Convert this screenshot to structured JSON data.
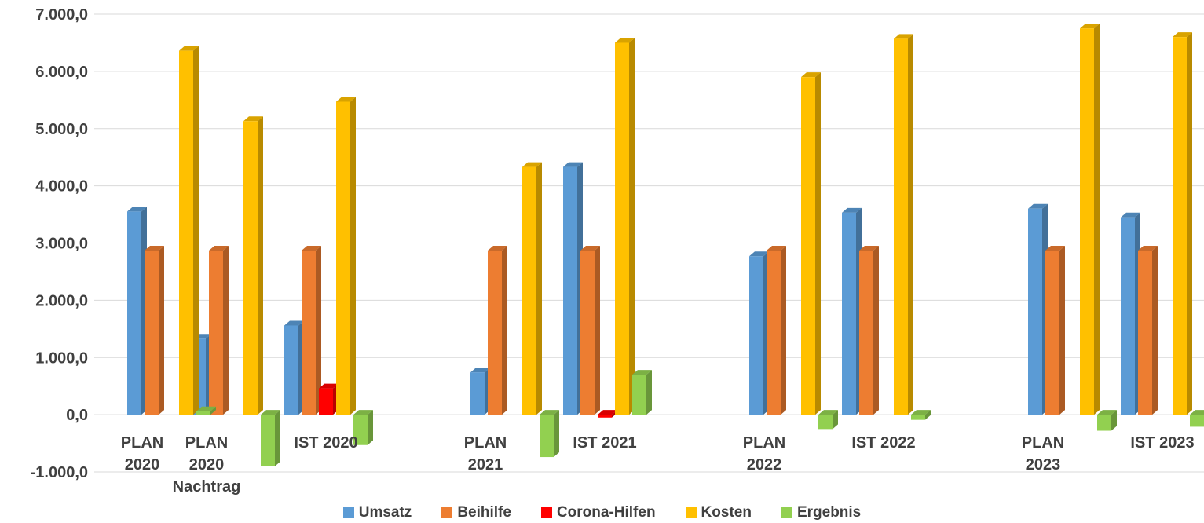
{
  "chart_data": {
    "type": "bar",
    "title": "",
    "xlabel": "",
    "ylabel": "",
    "ylim": [
      -1000,
      7000
    ],
    "yticks": [
      "-1.000,0",
      "0,0",
      "1.000,0",
      "2.000,0",
      "3.000,0",
      "4.000,0",
      "5.000,0",
      "6.000,0",
      "7.000,0"
    ],
    "grid": true,
    "legend_position": "bottom",
    "categories": [
      [
        "PLAN",
        "2020"
      ],
      [
        "PLAN",
        "2020",
        "Nachtrag"
      ],
      [
        "IST 2020"
      ],
      [
        "PLAN",
        "2021"
      ],
      [
        "IST 2021"
      ],
      [
        "PLAN",
        "2022"
      ],
      [
        "IST 2022"
      ],
      [
        "PLAN",
        "2023"
      ],
      [
        "IST 2023"
      ]
    ],
    "series": [
      {
        "name": "Umsatz",
        "color": "#5b9bd5",
        "values": [
          3550,
          1330,
          1560,
          740,
          4330,
          2770,
          3530,
          3600,
          3450
        ]
      },
      {
        "name": "Beihilfe",
        "color": "#ed7d31",
        "values": [
          2870,
          2870,
          2870,
          2870,
          2870,
          2870,
          2870,
          2870,
          2870
        ]
      },
      {
        "name": "Corona-Hilfen",
        "color": "#ff0000",
        "values": [
          0,
          0,
          460,
          0,
          -50,
          0,
          0,
          0,
          0
        ]
      },
      {
        "name": "Kosten",
        "color": "#ffc000",
        "values": [
          6360,
          5130,
          5470,
          4330,
          6500,
          5900,
          6570,
          6750,
          6600
        ]
      },
      {
        "name": "Ergebnis",
        "color": "#92d050",
        "values": [
          60,
          -900,
          -530,
          -740,
          700,
          -250,
          -90,
          -280,
          -210
        ]
      }
    ]
  }
}
